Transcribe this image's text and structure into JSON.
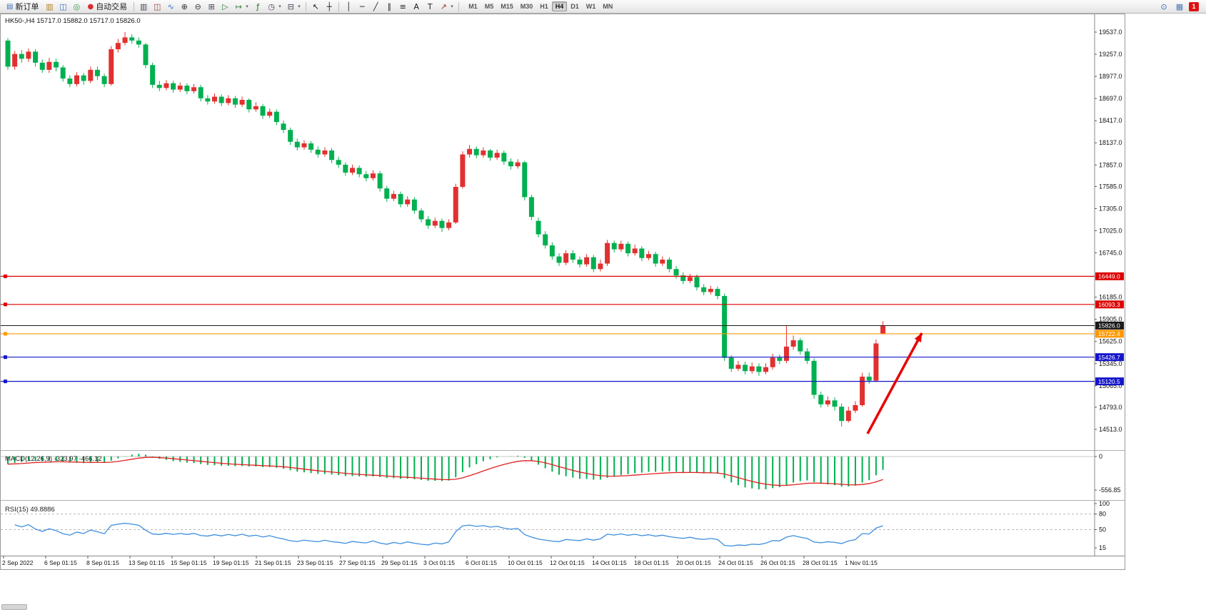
{
  "toolbar": {
    "left": [
      {
        "kind": "button",
        "name": "new-order-button",
        "icon": "new-order-icon",
        "glyph": "▤",
        "iconColor": "#4070c0",
        "label": "新订单"
      },
      {
        "kind": "icon",
        "name": "charts-window-icon",
        "glyph": "▥",
        "color": "#b08020"
      },
      {
        "kind": "icon",
        "name": "profiles-icon",
        "glyph": "◫",
        "color": "#3a6ec0"
      },
      {
        "kind": "icon",
        "name": "market-watch-icon",
        "glyph": "◎",
        "color": "#2f9f40"
      },
      {
        "kind": "button",
        "name": "auto-trading-button",
        "icon": "auto-trading-icon",
        "glyph": "●",
        "iconColor": "#d83030",
        "label": "自动交易"
      },
      {
        "kind": "sep"
      },
      {
        "kind": "icon",
        "name": "bar-chart-icon",
        "glyph": "▥",
        "color": "#445"
      },
      {
        "kind": "icon",
        "name": "candlestick-chart-icon",
        "glyph": "◫",
        "color": "#a04040"
      },
      {
        "kind": "icon",
        "name": "line-chart-icon",
        "glyph": "∿",
        "color": "#3a6ec0"
      },
      {
        "kind": "icon",
        "name": "zoom-in-icon",
        "glyph": "⊕",
        "color": "#333"
      },
      {
        "kind": "icon",
        "name": "zoom-out-icon",
        "glyph": "⊖",
        "color": "#333"
      },
      {
        "kind": "icon",
        "name": "tile-windows-icon",
        "glyph": "⊞",
        "color": "#445"
      },
      {
        "kind": "icon",
        "name": "auto-scroll-icon",
        "glyph": "▷",
        "color": "#2f7f3f"
      },
      {
        "kind": "icon",
        "name": "chart-shift-icon",
        "glyph": "↦",
        "color": "#2f7f3f",
        "dropdown": true
      },
      {
        "kind": "icon",
        "name": "indicators-icon",
        "glyph": "ƒ",
        "color": "#207020"
      },
      {
        "kind": "icon",
        "name": "periods-icon",
        "glyph": "◷",
        "color": "#445",
        "dropdown": true
      },
      {
        "kind": "icon",
        "name": "templates-icon",
        "glyph": "⊟",
        "color": "#445",
        "dropdown": true
      },
      {
        "kind": "sep"
      },
      {
        "kind": "icon",
        "name": "cursor-icon",
        "glyph": "↖",
        "color": "#222"
      },
      {
        "kind": "icon",
        "name": "crosshair-icon",
        "glyph": "┼",
        "color": "#222"
      },
      {
        "kind": "sep"
      },
      {
        "kind": "icon",
        "name": "vertical-line-icon",
        "glyph": "│",
        "color": "#222"
      },
      {
        "kind": "icon",
        "name": "horizontal-line-icon",
        "glyph": "─",
        "color": "#222"
      },
      {
        "kind": "icon",
        "name": "trendline-icon",
        "glyph": "╱",
        "color": "#222"
      },
      {
        "kind": "icon",
        "name": "channel-icon",
        "glyph": "∥",
        "color": "#222"
      },
      {
        "kind": "icon",
        "name": "fibonacci-icon",
        "glyph": "≡",
        "color": "#222"
      },
      {
        "kind": "icon",
        "name": "text-icon",
        "glyph": "A",
        "color": "#222"
      },
      {
        "kind": "icon",
        "name": "text-label-icon",
        "glyph": "T",
        "color": "#222"
      },
      {
        "kind": "icon",
        "name": "arrows-icon",
        "glyph": "↗",
        "color": "#b03030",
        "dropdown": true
      },
      {
        "kind": "sep"
      }
    ],
    "timeframes": [
      "M1",
      "M5",
      "M15",
      "M30",
      "H1",
      "H4",
      "D1",
      "W1",
      "MN"
    ],
    "active_timeframe": "H4",
    "right": [
      {
        "kind": "icon",
        "name": "search-icon",
        "glyph": "⊙",
        "color": "#3a6ec0"
      },
      {
        "kind": "icon",
        "name": "data-window-icon",
        "glyph": "▦",
        "color": "#4a7ab5"
      },
      {
        "kind": "badge",
        "name": "notifications-badge",
        "label": "1"
      }
    ]
  },
  "chart_data": {
    "type": "candlestick",
    "symbol": "HK50-",
    "timeframe": "H4",
    "ohlc_display": {
      "open": "15717.0",
      "high": "15882.0",
      "low": "15717.0",
      "close": "15826.0"
    },
    "y_axis": {
      "range": [
        14513,
        19537
      ],
      "labels": [
        "19537.0",
        "19257.0",
        "18977.0",
        "18697.0",
        "18417.0",
        "18137.0",
        "17857.0",
        "17585.0",
        "17305.0",
        "17025.0",
        "16745.0",
        "16185.0",
        "15905.0",
        "15625.0",
        "15345.0",
        "15065.0",
        "14793.0",
        "14513.0"
      ]
    },
    "x_labels": [
      "2 Sep 2022",
      "6 Sep 01:15",
      "8 Sep 01:15",
      "13 Sep 01:15",
      "15 Sep 01:15",
      "19 Sep 01:15",
      "21 Sep 01:15",
      "23 Sep 01:15",
      "27 Sep 01:15",
      "29 Sep 01:15",
      "3 Oct 01:15",
      "6 Oct 01:15",
      "10 Oct 01:15",
      "12 Oct 01:15",
      "14 Oct 01:15",
      "18 Oct 01:15",
      "20 Oct 01:15",
      "24 Oct 01:15",
      "26 Oct 01:15",
      "28 Oct 01:15",
      "1 Nov 01:15"
    ],
    "colors": {
      "up": "#e23030",
      "down": "#00b050",
      "background": "#ffffff"
    },
    "candles_ohlc": [
      [
        19430,
        19460,
        19060,
        19100
      ],
      [
        19100,
        19300,
        19060,
        19260
      ],
      [
        19260,
        19310,
        19150,
        19200
      ],
      [
        19200,
        19330,
        19160,
        19290
      ],
      [
        19290,
        19320,
        19100,
        19150
      ],
      [
        19150,
        19190,
        19020,
        19060
      ],
      [
        19060,
        19210,
        19020,
        19160
      ],
      [
        19160,
        19200,
        19040,
        19090
      ],
      [
        19090,
        19120,
        18910,
        18950
      ],
      [
        18950,
        18990,
        18840,
        18880
      ],
      [
        18880,
        19030,
        18850,
        18990
      ],
      [
        18990,
        19020,
        18870,
        18920
      ],
      [
        18920,
        19100,
        18890,
        19060
      ],
      [
        19060,
        19100,
        18930,
        18980
      ],
      [
        18980,
        19010,
        18840,
        18880
      ],
      [
        18880,
        19360,
        18860,
        19320
      ],
      [
        19320,
        19450,
        19280,
        19400
      ],
      [
        19400,
        19537,
        19370,
        19470
      ],
      [
        19470,
        19510,
        19390,
        19430
      ],
      [
        19430,
        19470,
        19340,
        19380
      ],
      [
        19380,
        19400,
        19080,
        19120
      ],
      [
        19120,
        19150,
        18830,
        18870
      ],
      [
        18870,
        18920,
        18790,
        18830
      ],
      [
        18830,
        18930,
        18800,
        18890
      ],
      [
        18890,
        18920,
        18770,
        18810
      ],
      [
        18810,
        18900,
        18780,
        18860
      ],
      [
        18860,
        18890,
        18750,
        18790
      ],
      [
        18790,
        18880,
        18760,
        18840
      ],
      [
        18840,
        18870,
        18660,
        18700
      ],
      [
        18700,
        18740,
        18620,
        18660
      ],
      [
        18660,
        18760,
        18630,
        18720
      ],
      [
        18720,
        18750,
        18600,
        18640
      ],
      [
        18640,
        18740,
        18610,
        18700
      ],
      [
        18700,
        18730,
        18580,
        18620
      ],
      [
        18620,
        18720,
        18590,
        18680
      ],
      [
        18680,
        18700,
        18520,
        18560
      ],
      [
        18560,
        18650,
        18530,
        18600
      ],
      [
        18600,
        18630,
        18440,
        18480
      ],
      [
        18480,
        18570,
        18450,
        18530
      ],
      [
        18530,
        18560,
        18360,
        18400
      ],
      [
        18380,
        18420,
        18260,
        18300
      ],
      [
        18300,
        18330,
        18110,
        18150
      ],
      [
        18150,
        18190,
        18040,
        18080
      ],
      [
        18080,
        18170,
        18050,
        18130
      ],
      [
        18130,
        18160,
        18010,
        18050
      ],
      [
        18050,
        18090,
        17950,
        17990
      ],
      [
        17990,
        18080,
        17960,
        18040
      ],
      [
        18040,
        18070,
        17880,
        17920
      ],
      [
        17920,
        17960,
        17820,
        17860
      ],
      [
        17860,
        17890,
        17720,
        17760
      ],
      [
        17760,
        17860,
        17730,
        17820
      ],
      [
        17820,
        17850,
        17700,
        17740
      ],
      [
        17740,
        17780,
        17650,
        17690
      ],
      [
        17690,
        17790,
        17660,
        17750
      ],
      [
        17750,
        17780,
        17520,
        17560
      ],
      [
        17560,
        17590,
        17390,
        17430
      ],
      [
        17430,
        17530,
        17400,
        17490
      ],
      [
        17490,
        17520,
        17320,
        17360
      ],
      [
        17360,
        17460,
        17330,
        17420
      ],
      [
        17420,
        17450,
        17240,
        17280
      ],
      [
        17280,
        17310,
        17130,
        17170
      ],
      [
        17170,
        17210,
        17050,
        17090
      ],
      [
        17090,
        17190,
        17060,
        17150
      ],
      [
        17150,
        17180,
        17010,
        17060
      ],
      [
        17060,
        17170,
        17030,
        17130
      ],
      [
        17130,
        17620,
        17110,
        17580
      ],
      [
        17580,
        18030,
        17560,
        17990
      ],
      [
        17990,
        18110,
        17950,
        18060
      ],
      [
        18060,
        18090,
        17940,
        17980
      ],
      [
        17980,
        18080,
        17950,
        18040
      ],
      [
        18040,
        18060,
        17910,
        17950
      ],
      [
        17950,
        18050,
        17920,
        18010
      ],
      [
        18010,
        18040,
        17860,
        17900
      ],
      [
        17900,
        17940,
        17800,
        17840
      ],
      [
        17840,
        17930,
        17810,
        17890
      ],
      [
        17890,
        17910,
        17410,
        17450
      ],
      [
        17450,
        17480,
        17160,
        17200
      ],
      [
        17150,
        17190,
        16940,
        16980
      ],
      [
        16980,
        17020,
        16800,
        16840
      ],
      [
        16840,
        16880,
        16660,
        16700
      ],
      [
        16700,
        16740,
        16580,
        16620
      ],
      [
        16620,
        16780,
        16590,
        16740
      ],
      [
        16740,
        16780,
        16620,
        16660
      ],
      [
        16660,
        16700,
        16560,
        16600
      ],
      [
        16600,
        16730,
        16570,
        16690
      ],
      [
        16690,
        16720,
        16500,
        16540
      ],
      [
        16540,
        16660,
        16510,
        16610
      ],
      [
        16610,
        16910,
        16580,
        16870
      ],
      [
        16870,
        16900,
        16750,
        16790
      ],
      [
        16790,
        16900,
        16760,
        16860
      ],
      [
        16860,
        16890,
        16700,
        16740
      ],
      [
        16740,
        16850,
        16710,
        16800
      ],
      [
        16800,
        16830,
        16640,
        16680
      ],
      [
        16680,
        16770,
        16650,
        16730
      ],
      [
        16730,
        16760,
        16570,
        16610
      ],
      [
        16610,
        16700,
        16580,
        16660
      ],
      [
        16660,
        16690,
        16500,
        16540
      ],
      [
        16540,
        16580,
        16420,
        16460
      ],
      [
        16460,
        16500,
        16350,
        16390
      ],
      [
        16390,
        16480,
        16360,
        16440
      ],
      [
        16440,
        16470,
        16270,
        16310
      ],
      [
        16310,
        16350,
        16210,
        16250
      ],
      [
        16250,
        16330,
        16220,
        16290
      ],
      [
        16290,
        16320,
        16160,
        16200
      ],
      [
        16200,
        16230,
        15380,
        15420
      ],
      [
        15420,
        15450,
        15240,
        15280
      ],
      [
        15280,
        15380,
        15250,
        15330
      ],
      [
        15330,
        15370,
        15210,
        15250
      ],
      [
        15250,
        15360,
        15220,
        15310
      ],
      [
        15310,
        15350,
        15190,
        15240
      ],
      [
        15240,
        15350,
        15210,
        15300
      ],
      [
        15300,
        15470,
        15270,
        15420
      ],
      [
        15420,
        15460,
        15340,
        15380
      ],
      [
        15380,
        15830,
        15350,
        15560
      ],
      [
        15560,
        15700,
        15520,
        15640
      ],
      [
        15640,
        15670,
        15460,
        15500
      ],
      [
        15500,
        15540,
        15340,
        15380
      ],
      [
        15380,
        15410,
        14900,
        14950
      ],
      [
        14950,
        14990,
        14790,
        14830
      ],
      [
        14830,
        14930,
        14800,
        14880
      ],
      [
        14880,
        14920,
        14750,
        14800
      ],
      [
        14800,
        14840,
        14550,
        14620
      ],
      [
        14620,
        14800,
        14600,
        14750
      ],
      [
        14750,
        14870,
        14720,
        14820
      ],
      [
        14820,
        15230,
        14800,
        15180
      ],
      [
        15180,
        15230,
        15090,
        15130
      ],
      [
        15130,
        15650,
        15110,
        15600
      ],
      [
        15717,
        15882,
        15717,
        15826
      ]
    ],
    "price_markers": [
      {
        "label": "16449.0",
        "price": 16449.0,
        "color": "#dd0000",
        "type": "hline",
        "handles": true
      },
      {
        "label": "16093.3",
        "price": 16093.3,
        "color": "#dd0000",
        "type": "hline",
        "handles": true
      },
      {
        "label": "15826.0",
        "price": 15826.0,
        "color": "#1a1a1a",
        "type": "current",
        "handles": false
      },
      {
        "label": "15722.4",
        "price": 15722.4,
        "color": "#ff9800",
        "type": "hline",
        "handles": true
      },
      {
        "label": "15426.7",
        "price": 15426.7,
        "color": "#1515cc",
        "type": "hline",
        "handles": true
      },
      {
        "label": "15120.5",
        "price": 15120.5,
        "color": "#1515cc",
        "type": "hline",
        "handles": true
      }
    ],
    "indicators": [
      {
        "type": "macd",
        "label": "MACD(12,26,9)",
        "value_main": "-323.97",
        "value_signal": "-466.12",
        "scale_labels": [
          "0",
          "-556.85"
        ],
        "histogram_color": "#00b050",
        "signal_color": "#e02020"
      },
      {
        "type": "rsi",
        "label": "RSI(15)",
        "value": "49.8886",
        "scale_labels": [
          "100",
          "80",
          "50",
          "15"
        ],
        "levels": [
          80,
          50
        ],
        "line_color": "#3e8ede"
      }
    ],
    "annotations": [
      {
        "type": "arrow",
        "from": [
          1214,
          588
        ],
        "to": [
          1290,
          447
        ],
        "color": "#e80000",
        "width": 3.5
      }
    ]
  }
}
